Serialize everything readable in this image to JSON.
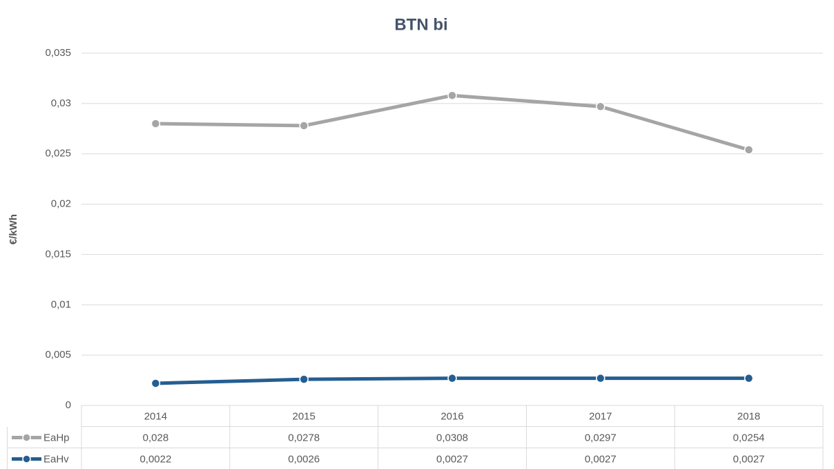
{
  "chart_data": {
    "type": "line",
    "title": "BTN bi",
    "y_label": "€/kWh",
    "categories": [
      "2014",
      "2015",
      "2016",
      "2017",
      "2018"
    ],
    "series": [
      {
        "name": "EaHp",
        "color": "#a5a5a5",
        "values": [
          0.028,
          0.0278,
          0.0308,
          0.0297,
          0.0254
        ],
        "value_labels": [
          "0,028",
          "0,0278",
          "0,0308",
          "0,0297",
          "0,0254"
        ]
      },
      {
        "name": "EaHv",
        "color": "#255e91",
        "values": [
          0.0022,
          0.0026,
          0.0027,
          0.0027,
          0.0027
        ],
        "value_labels": [
          "0,0022",
          "0,0026",
          "0,0027",
          "0,0027",
          "0,0027"
        ]
      }
    ],
    "ylim": [
      0,
      0.035
    ],
    "yticks": [
      0,
      {
        "value": 0.005,
        "label": "0,005"
      },
      {
        "value": 0.01,
        "label": "0,01"
      },
      {
        "value": 0.015,
        "label": "0,015"
      },
      {
        "value": 0.02,
        "label": "0,02"
      },
      {
        "value": 0.025,
        "label": "0,025"
      },
      {
        "value": 0.03,
        "label": "0,03"
      },
      {
        "value": 0.035,
        "label": "0,035"
      }
    ],
    "grid": true
  }
}
